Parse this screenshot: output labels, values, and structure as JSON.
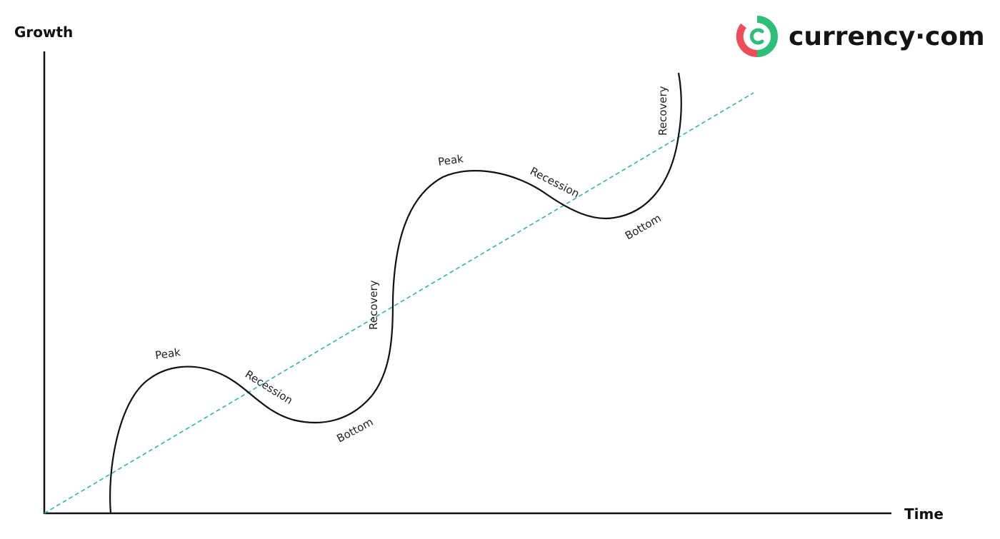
{
  "axes": {
    "y_title": "Growth",
    "x_title": "Time"
  },
  "brand": {
    "name": "currency·com",
    "colors": {
      "green": "#2dbe7a",
      "red": "#ee4d57",
      "text": "#141414"
    }
  },
  "labels": {
    "peak_1": "Peak",
    "recession_1": "Recession",
    "bottom_1": "Bottom",
    "recovery_1": "Recovery",
    "peak_2": "Peak",
    "recession_2": "Recession",
    "bottom_2": "Bottom",
    "recovery_2": "Recovery"
  },
  "colors": {
    "axis": "#111111",
    "cycle_curve": "#111111",
    "trend_line": "#2ebd85"
  }
}
